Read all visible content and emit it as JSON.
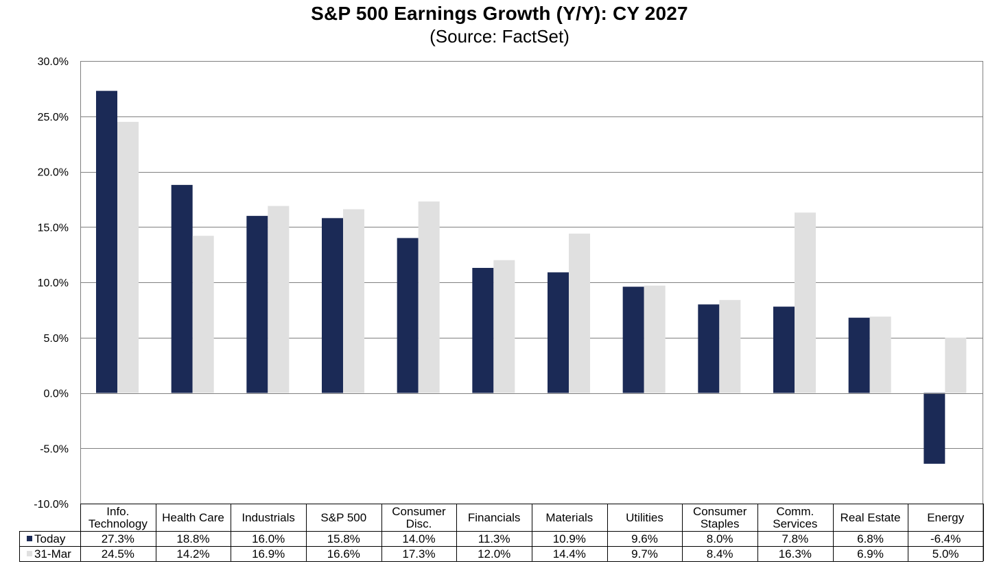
{
  "title": "S&P 500 Earnings Growth (Y/Y): CY 2027",
  "subtitle": "(Source: FactSet)",
  "colors": {
    "today": "#1b2a56",
    "prior": "#e0e0e0",
    "grid": "#7f7f7f",
    "axis": "#7f7f7f"
  },
  "chart_data": {
    "type": "bar",
    "title": "S&P 500 Earnings Growth (Y/Y): CY 2027",
    "subtitle": "(Source: FactSet)",
    "categories": [
      "Info. Technology",
      "Health Care",
      "Industrials",
      "S&P 500",
      "Consumer Disc.",
      "Financials",
      "Materials",
      "Utilities",
      "Consumer Staples",
      "Comm. Services",
      "Real Estate",
      "Energy"
    ],
    "category_lines": [
      [
        "Info.",
        "Technology"
      ],
      [
        "Health Care"
      ],
      [
        "Industrials"
      ],
      [
        "S&P 500"
      ],
      [
        "Consumer",
        "Disc."
      ],
      [
        "Financials"
      ],
      [
        "Materials"
      ],
      [
        "Utilities"
      ],
      [
        "Consumer",
        "Staples"
      ],
      [
        "Comm.",
        "Services"
      ],
      [
        "Real Estate"
      ],
      [
        "Energy"
      ]
    ],
    "series": [
      {
        "name": "Today",
        "values": [
          27.3,
          18.8,
          16.0,
          15.8,
          14.0,
          11.3,
          10.9,
          9.6,
          8.0,
          7.8,
          6.8,
          -6.4
        ],
        "labels": [
          "27.3%",
          "18.8%",
          "16.0%",
          "15.8%",
          "14.0%",
          "11.3%",
          "10.9%",
          "9.6%",
          "8.0%",
          "7.8%",
          "6.8%",
          "-6.4%"
        ]
      },
      {
        "name": "31-Mar",
        "values": [
          24.5,
          14.2,
          16.9,
          16.6,
          17.3,
          12.0,
          14.4,
          9.7,
          8.4,
          16.3,
          6.9,
          5.0
        ],
        "labels": [
          "24.5%",
          "14.2%",
          "16.9%",
          "16.6%",
          "17.3%",
          "12.0%",
          "14.4%",
          "9.7%",
          "8.4%",
          "16.3%",
          "6.9%",
          "5.0%"
        ]
      }
    ],
    "ylim": [
      -10,
      30
    ],
    "yticks": [
      30,
      25,
      20,
      15,
      10,
      5,
      0,
      -5,
      -10
    ],
    "ytick_labels": [
      "30.0%",
      "25.0%",
      "20.0%",
      "15.0%",
      "10.0%",
      "5.0%",
      "0.0%",
      "-5.0%",
      "-10.0%"
    ],
    "grid": true,
    "legend": "data-table"
  }
}
